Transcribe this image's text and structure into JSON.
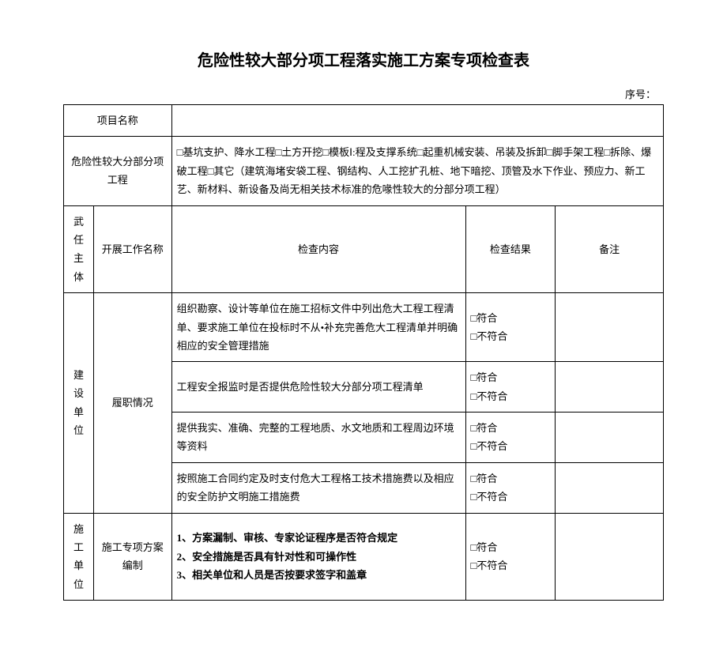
{
  "title": "危险性较大部分项工程落实施工方案专项检查表",
  "seq_label": "序号：",
  "row1": {
    "label": "项目名称",
    "value": ""
  },
  "row2": {
    "label": "危险性较大分部分项工程",
    "content": "□基坑支护、降水工程□土方开挖□模板Ⅰ:程及支撑系统□起重机械安装、吊装及拆卸□脚手架工程□拆除、爆破工程□其它（建筑海堵安袋工程、钢结构、人工挖扩孔桩、地下暗挖、顶管及水下作业、预应力、新工艺、新材料、新设备及尚无相关技术标准的危喙性较大的分部分项工程）"
  },
  "header": {
    "c1": "武任主体",
    "c2": "开展工作名称",
    "c3": "检查内容",
    "c4": "检查结果",
    "c5": "备注"
  },
  "group1": {
    "subject": "建设单位",
    "work": "履职情况",
    "items": [
      {
        "content": "组织勘察、设计等单位在施工招标文件中列出危大工程工程清单、要求施工单位在投标时不从•补充完善危大工程清单并明确相应的安全管理措施",
        "result": "□符合\n□不符合"
      },
      {
        "content": "工程安全报监时是否提供危险性较大分部分项工程清单",
        "result": "□符合\n□不符合"
      },
      {
        "content": "提供我实、准确、完整的工程地质、水文地质和工程周边环境等资料",
        "result": "□符合\n□不符合"
      },
      {
        "content": "按照施工合同约定及时支付危大工程格工技术措施费以及相应的安全防护文明施工措施费",
        "result": "□符合\n□不符合"
      }
    ]
  },
  "group2": {
    "subject": "施工单位",
    "work": "施工专项方案编制",
    "content": "1、方案漏制、审核、专家论证程序是否符合规定\n2、安全措施是否具有针对性和可操作性\n3、相关单位和人员是否按要求签字和盖章",
    "result": "□符合\n□不符合"
  }
}
